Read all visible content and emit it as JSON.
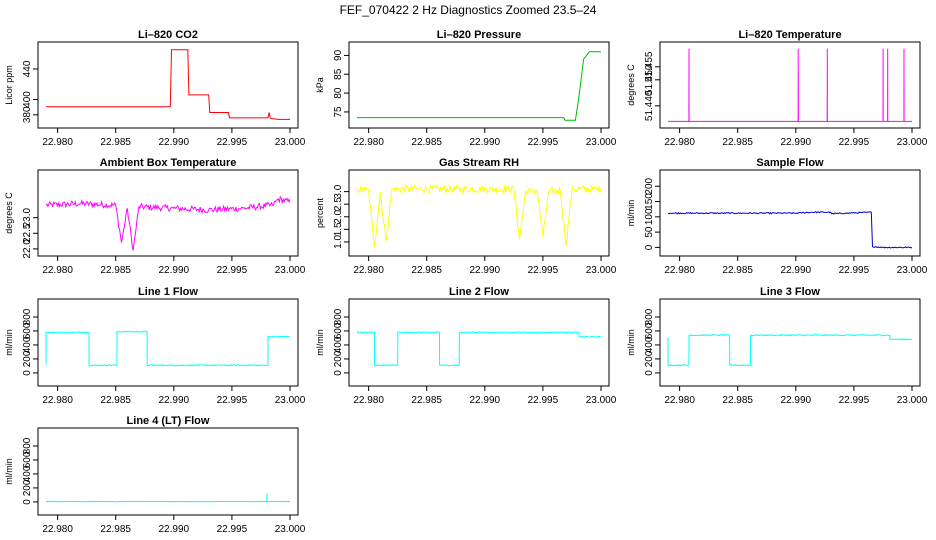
{
  "figure": {
    "title": "FEF_070422  2 Hz Diagnostics Zoomed 23.5–24"
  },
  "x_tick_labels": [
    "22.980",
    "22.985",
    "22.990",
    "22.995",
    "23.000"
  ],
  "chart_data": [
    {
      "type": "line",
      "title": "Li–820 CO2",
      "ylabel": "Licor ppm",
      "color": "#ff0000",
      "xlim": [
        22.979,
        23.0
      ],
      "ylim": [
        368,
        470
      ],
      "yticks": [
        380,
        400,
        440
      ],
      "ytick_labels": [
        "380",
        "400",
        "440"
      ],
      "series": [
        {
          "x": [
            22.979,
            22.98,
            22.985,
            22.9897,
            22.9898,
            22.9912,
            22.9913,
            22.993,
            22.9931,
            22.9947,
            22.9948,
            22.9981,
            22.9982,
            22.9983,
            22.9984,
            22.999,
            23.0
          ],
          "y": [
            390.5,
            390.5,
            390.5,
            390.5,
            465,
            465,
            406,
            406,
            383,
            383,
            376,
            376,
            383,
            376,
            375,
            374,
            374
          ]
        }
      ]
    },
    {
      "type": "line",
      "title": "Li–820 Pressure",
      "ylabel": "kPa",
      "color": "#00bb00",
      "xlim": [
        22.979,
        23.0
      ],
      "ylim": [
        71.8,
        92.5
      ],
      "yticks": [
        75,
        80,
        85,
        90
      ],
      "ytick_labels": [
        "75",
        "80",
        "85",
        "90"
      ],
      "series": [
        {
          "x": [
            22.979,
            22.985,
            22.9968,
            22.9969,
            22.9978,
            22.9981,
            22.9985,
            22.999,
            23.0
          ],
          "y": [
            73.5,
            73.5,
            73.5,
            72.8,
            72.8,
            79,
            89,
            91,
            91
          ]
        }
      ]
    },
    {
      "type": "line",
      "title": "Li–820 Temperature",
      "ylabel": "degrees C",
      "color": "#ff00ff",
      "xlim": [
        22.979,
        23.0
      ],
      "ylim": [
        51.433,
        51.463
      ],
      "yticks": [
        51.44,
        51.45,
        51.455
      ],
      "ytick_labels": [
        "51.440",
        "51.450",
        "51.455"
      ],
      "series": [
        {
          "x": [
            22.979,
            22.9808,
            22.98081,
            22.98082,
            22.9808,
            22.9809,
            22.9902,
            22.99021,
            22.99022,
            22.9903,
            22.9927,
            22.99271,
            22.99272,
            22.9928,
            22.9975,
            22.99751,
            22.99752,
            22.9976,
            22.9979,
            22.99791,
            22.99792,
            22.998,
            22.9993,
            22.99931,
            22.99932,
            22.9994,
            23.0
          ],
          "y": [
            51.434,
            51.434,
            51.462,
            51.434,
            51.434,
            51.434,
            51.434,
            51.462,
            51.434,
            51.434,
            51.434,
            51.462,
            51.434,
            51.434,
            51.434,
            51.462,
            51.434,
            51.434,
            51.434,
            51.462,
            51.434,
            51.434,
            51.434,
            51.462,
            51.434,
            51.434,
            51.434
          ]
        }
      ]
    },
    {
      "type": "line",
      "title": "Ambient Box Temperature",
      "ylabel": "degrees C",
      "color": "#ff00ff",
      "xlim": [
        22.979,
        23.0
      ],
      "ylim": [
        21.9,
        24.4
      ],
      "yticks": [
        22.0,
        22.5,
        23.0
      ],
      "ytick_labels": [
        "22.0",
        "22.5",
        "23.0"
      ],
      "noise": 0.1,
      "series": [
        {
          "x": [
            22.979,
            22.982,
            22.985,
            22.9855,
            22.986,
            22.9865,
            22.987,
            22.99,
            22.993,
            22.996,
            22.9985,
            22.999,
            23.0
          ],
          "y": [
            23.4,
            23.45,
            23.4,
            22.2,
            23.3,
            21.95,
            23.35,
            23.3,
            23.25,
            23.3,
            23.4,
            23.6,
            23.5
          ]
        }
      ]
    },
    {
      "type": "line",
      "title": "Gas Stream RH",
      "ylabel": "percent",
      "color": "#ffff00",
      "xlim": [
        22.979,
        23.0
      ],
      "ylim": [
        0.6,
        3.7
      ],
      "yticks": [
        1.0,
        1.5,
        2.0,
        2.5,
        3.0
      ],
      "ytick_labels": [
        "1.0",
        "1.5",
        "2.0",
        "2.5",
        "3.0"
      ],
      "noise": 0.15,
      "series": [
        {
          "x": [
            22.979,
            22.98,
            22.9805,
            22.981,
            22.9815,
            22.982,
            22.9925,
            22.993,
            22.9935,
            22.9945,
            22.995,
            22.9955,
            22.9965,
            22.997,
            22.9975,
            23.0
          ],
          "y": [
            3.1,
            3.05,
            0.8,
            3.0,
            1.0,
            3.1,
            3.1,
            1.1,
            3.0,
            3.05,
            1.2,
            3.0,
            3.05,
            0.85,
            3.1,
            3.1
          ]
        }
      ]
    },
    {
      "type": "line",
      "title": "Sample Flow",
      "ylabel": "ml/min",
      "color": "#0000cc",
      "xlim": [
        22.979,
        23.0
      ],
      "ylim": [
        -15,
        240
      ],
      "yticks": [
        0,
        50,
        100,
        150,
        200
      ],
      "ytick_labels": [
        "0",
        "50",
        "100",
        "150",
        "200"
      ],
      "noise": 2,
      "series": [
        {
          "x": [
            22.979,
            22.99,
            22.9913,
            22.993,
            22.9931,
            22.9965,
            22.9966,
            22.9975,
            23.0
          ],
          "y": [
            112,
            112,
            115,
            115,
            110,
            115,
            3,
            0,
            0
          ]
        }
      ]
    },
    {
      "type": "line",
      "title": "Line 1 Flow",
      "ylabel": "ml/min",
      "color": "#00ffff",
      "xlim": [
        22.979,
        23.0
      ],
      "ylim": [
        -130,
        1000
      ],
      "yticks": [
        0,
        200,
        400,
        600,
        800
      ],
      "ytick_labels": [
        "0",
        "200",
        "400",
        "600",
        "800"
      ],
      "noise": 8,
      "series": [
        {
          "x": [
            22.979,
            22.97901,
            22.9827,
            22.98271,
            22.9851,
            22.98511,
            22.9877,
            22.98771,
            22.9981,
            22.99811,
            23.0
          ],
          "y": [
            120,
            580,
            580,
            110,
            110,
            590,
            590,
            110,
            110,
            520,
            520
          ]
        }
      ]
    },
    {
      "type": "line",
      "title": "Line 2 Flow",
      "ylabel": "ml/min",
      "color": "#00ffff",
      "xlim": [
        22.979,
        23.0
      ],
      "ylim": [
        -130,
        1000
      ],
      "yticks": [
        0,
        200,
        400,
        600,
        800
      ],
      "ytick_labels": [
        "0",
        "200",
        "400",
        "600",
        "800"
      ],
      "noise": 8,
      "series": [
        {
          "x": [
            22.979,
            22.9805,
            22.98051,
            22.9825,
            22.98251,
            22.9861,
            22.98611,
            22.9878,
            22.98781,
            22.9981,
            22.99811,
            23.0
          ],
          "y": [
            580,
            580,
            110,
            110,
            580,
            580,
            110,
            110,
            580,
            580,
            520,
            520
          ]
        }
      ]
    },
    {
      "type": "line",
      "title": "Line 3 Flow",
      "ylabel": "ml/min",
      "color": "#00ffff",
      "xlim": [
        22.979,
        23.0
      ],
      "ylim": [
        -130,
        1000
      ],
      "yticks": [
        0,
        200,
        400,
        600,
        800
      ],
      "ytick_labels": [
        "0",
        "200",
        "400",
        "600",
        "800"
      ],
      "noise": 8,
      "series": [
        {
          "x": [
            22.979,
            22.97901,
            22.9808,
            22.98081,
            22.9843,
            22.98431,
            22.9861,
            22.98611,
            22.9981,
            22.99811,
            23.0
          ],
          "y": [
            510,
            110,
            110,
            540,
            540,
            110,
            110,
            540,
            540,
            480,
            480
          ]
        }
      ]
    },
    {
      "type": "line",
      "title": "Line 4 (LT) Flow",
      "ylabel": "ml/min",
      "color": "#00ffff",
      "xlim": [
        22.979,
        23.0
      ],
      "ylim": [
        -130,
        1000
      ],
      "yticks": [
        0,
        200,
        400,
        600,
        800
      ],
      "ytick_labels": [
        "0",
        "200",
        "400",
        "600",
        "800"
      ],
      "noise": 2,
      "series": [
        {
          "x": [
            22.979,
            22.998,
            22.99801,
            22.99802,
            22.9981,
            23.0
          ],
          "y": [
            5,
            5,
            120,
            5,
            5,
            5
          ]
        }
      ]
    }
  ]
}
